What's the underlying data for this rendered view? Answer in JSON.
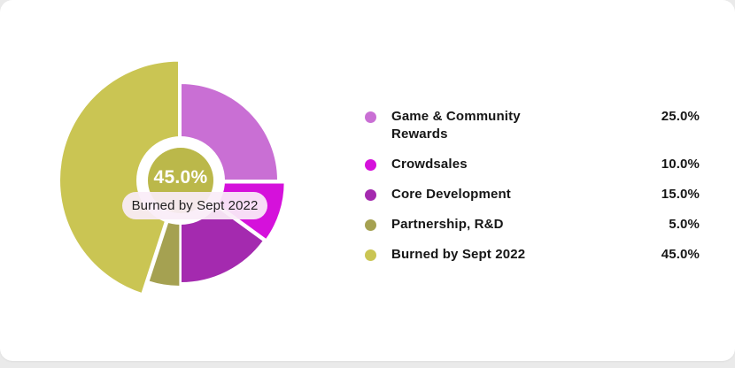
{
  "card": {
    "background": "#ffffff",
    "page_background": "#eaeaea"
  },
  "chart_data": {
    "type": "pie",
    "title": "",
    "legend_position": "right",
    "center_label": "45.0%",
    "tooltip": "Burned by Sept 2022",
    "center_circle_color": "#BBB84A",
    "ring_color": "#ffffff",
    "slices": [
      {
        "label": "Game & Community Rewards",
        "value": 25.0,
        "display": "25.0%",
        "color": "#C96FD4",
        "radius": 110,
        "pull": 0
      },
      {
        "label": "Crowdsales",
        "value": 10.0,
        "display": "10.0%",
        "color": "#D511DB",
        "radius": 110,
        "pull": 8
      },
      {
        "label": "Core Development",
        "value": 15.0,
        "display": "15.0%",
        "color": "#A42AAF",
        "radius": 116,
        "pull": 0
      },
      {
        "label": "Partnership, R&D",
        "value": 5.0,
        "display": "5.0%",
        "color": "#A5A151",
        "radius": 116,
        "pull": 4
      },
      {
        "label": "Burned by Sept 2022",
        "value": 45.0,
        "display": "45.0%",
        "color": "#CAC553",
        "radius": 135,
        "pull": 2
      }
    ]
  }
}
